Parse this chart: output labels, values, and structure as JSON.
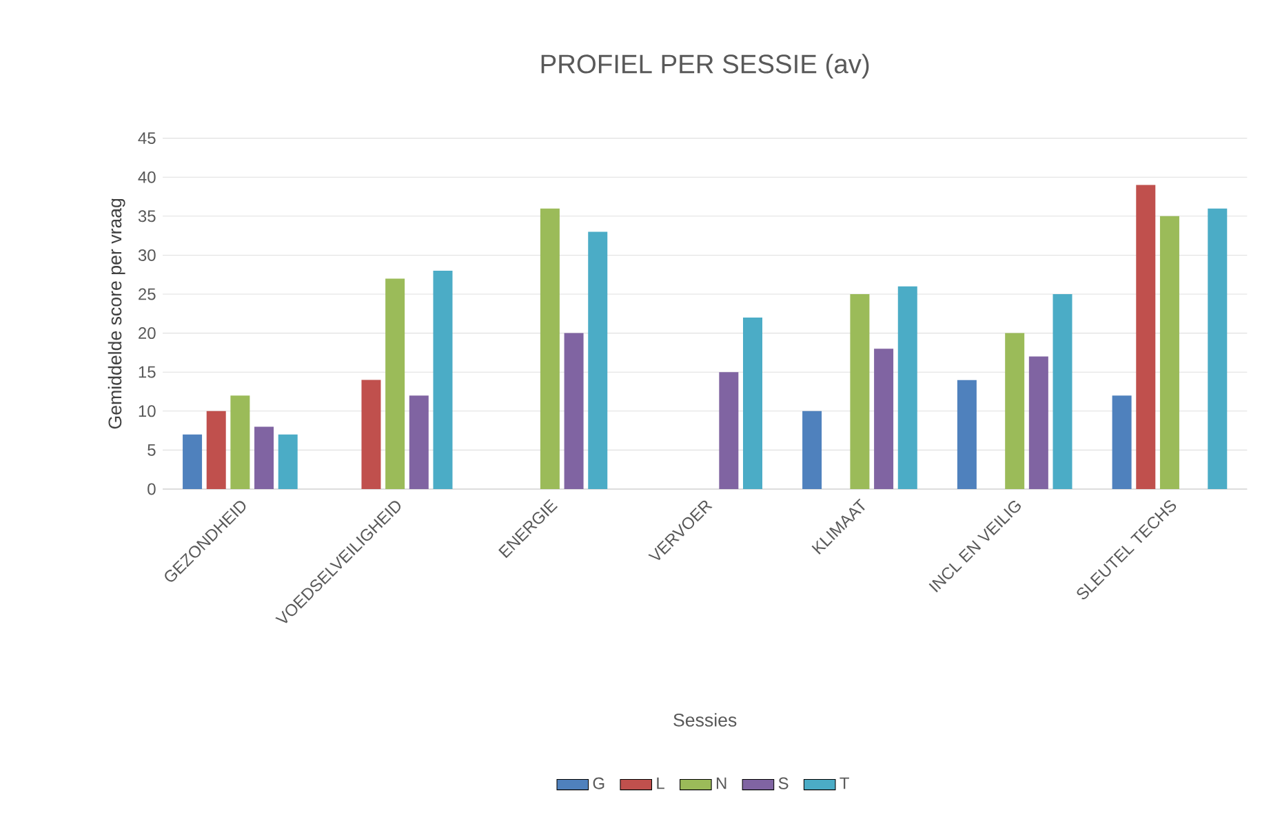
{
  "chart_data": {
    "type": "bar",
    "title": "PROFIEL PER SESSIE (av)",
    "xlabel": "Sessies",
    "ylabel": "Gemiddelde score per vraag",
    "categories": [
      "GEZONDHEID",
      "VOEDSELVEILIGHEID",
      "ENERGIE",
      "VERVOER",
      "KLIMAAT",
      "INCL EN VEILIG",
      "SLEUTEL TECHS"
    ],
    "series": [
      {
        "name": "G",
        "color": "#4f81bd",
        "values": [
          7,
          null,
          null,
          null,
          10,
          14,
          12
        ]
      },
      {
        "name": "L",
        "color": "#c0504d",
        "values": [
          10,
          14,
          null,
          null,
          null,
          null,
          39
        ]
      },
      {
        "name": "N",
        "color": "#9bbb59",
        "values": [
          12,
          27,
          36,
          null,
          25,
          20,
          35
        ]
      },
      {
        "name": "S",
        "color": "#8064a2",
        "values": [
          8,
          12,
          20,
          15,
          18,
          17,
          null
        ]
      },
      {
        "name": "T",
        "color": "#4bacc6",
        "values": [
          7,
          28,
          33,
          22,
          26,
          25,
          36
        ]
      }
    ],
    "ylim": [
      0,
      45
    ],
    "yticks": [
      0,
      5,
      10,
      15,
      20,
      25,
      30,
      35,
      40,
      45
    ],
    "grid": "y",
    "legend": "bottom"
  }
}
